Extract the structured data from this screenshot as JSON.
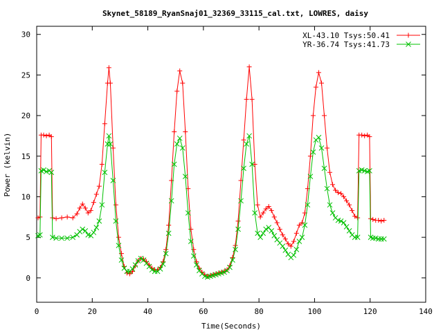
{
  "chart_data": {
    "type": "line",
    "title": "Skynet_58189_RyanSnaj01_32369_33115_cal.txt, LOWRES, daisy",
    "xlabel": "Time(Seconds)",
    "ylabel": "Power (kelvin)",
    "xlim": [
      0,
      140
    ],
    "ylim": [
      -3,
      31
    ],
    "xticks": [
      0,
      20,
      40,
      60,
      80,
      100,
      120,
      140
    ],
    "yticks": [
      0,
      5,
      10,
      15,
      20,
      25,
      30
    ],
    "grid": false,
    "legend_position": "top-right",
    "series": [
      {
        "name": "XL-43.10 Tsys:50.41",
        "color": "#ff0000",
        "marker": "plus",
        "points": [
          [
            0.5,
            7.4
          ],
          [
            1.2,
            7.5
          ],
          [
            1.6,
            17.6
          ],
          [
            2.5,
            17.6
          ],
          [
            3.5,
            17.5
          ],
          [
            4.5,
            17.6
          ],
          [
            5.3,
            17.4
          ],
          [
            5.7,
            7.4
          ],
          [
            7,
            7.3
          ],
          [
            9,
            7.4
          ],
          [
            11,
            7.5
          ],
          [
            13,
            7.4
          ],
          [
            14.5,
            7.9
          ],
          [
            15.5,
            8.6
          ],
          [
            16.5,
            9.1
          ],
          [
            17.5,
            8.6
          ],
          [
            18.5,
            8.0
          ],
          [
            19.5,
            8.3
          ],
          [
            20.5,
            9.3
          ],
          [
            21.5,
            10.3
          ],
          [
            22.5,
            11.3
          ],
          [
            23.5,
            14.0
          ],
          [
            24.5,
            19.0
          ],
          [
            25.5,
            24.0
          ],
          [
            26,
            25.9
          ],
          [
            26.5,
            24.0
          ],
          [
            27.5,
            16.0
          ],
          [
            28.5,
            9.0
          ],
          [
            29.5,
            5.0
          ],
          [
            30.5,
            3.0
          ],
          [
            31.5,
            1.4
          ],
          [
            32.5,
            0.6
          ],
          [
            33.5,
            0.5
          ],
          [
            34.5,
            0.8
          ],
          [
            35.5,
            1.5
          ],
          [
            36.5,
            2.1
          ],
          [
            37.5,
            2.4
          ],
          [
            38.5,
            2.3
          ],
          [
            39.5,
            2.0
          ],
          [
            40.5,
            1.6
          ],
          [
            41.5,
            1.2
          ],
          [
            42.5,
            1.0
          ],
          [
            43.5,
            1.0
          ],
          [
            44.5,
            1.3
          ],
          [
            45.5,
            2.0
          ],
          [
            46.5,
            3.5
          ],
          [
            47.5,
            6.5
          ],
          [
            48.5,
            12.0
          ],
          [
            49.5,
            18.0
          ],
          [
            50.5,
            23.0
          ],
          [
            51.5,
            25.5
          ],
          [
            52.5,
            24.0
          ],
          [
            53.5,
            18.0
          ],
          [
            54.5,
            11.0
          ],
          [
            55.5,
            6.0
          ],
          [
            56.5,
            3.5
          ],
          [
            57.5,
            2.0
          ],
          [
            58.5,
            1.2
          ],
          [
            59.5,
            0.7
          ],
          [
            60.5,
            0.4
          ],
          [
            61.5,
            0.2
          ],
          [
            62.5,
            0.3
          ],
          [
            63.5,
            0.4
          ],
          [
            64.5,
            0.5
          ],
          [
            65.5,
            0.6
          ],
          [
            66.5,
            0.7
          ],
          [
            67.5,
            0.8
          ],
          [
            68.5,
            1.0
          ],
          [
            69.5,
            1.5
          ],
          [
            70.5,
            2.5
          ],
          [
            71.5,
            4.0
          ],
          [
            72.5,
            7.0
          ],
          [
            73.5,
            12.0
          ],
          [
            74.5,
            17.0
          ],
          [
            75.5,
            22.0
          ],
          [
            76.5,
            26.0
          ],
          [
            77.5,
            22.0
          ],
          [
            78.5,
            14.0
          ],
          [
            79.5,
            9.0
          ],
          [
            80.5,
            7.5
          ],
          [
            81.5,
            8.0
          ],
          [
            82.5,
            8.5
          ],
          [
            83.5,
            8.8
          ],
          [
            84.5,
            8.3
          ],
          [
            85.5,
            7.5
          ],
          [
            86.5,
            6.8
          ],
          [
            87.5,
            6.0
          ],
          [
            88.5,
            5.3
          ],
          [
            89.5,
            4.8
          ],
          [
            90.5,
            4.2
          ],
          [
            91.5,
            3.9
          ],
          [
            92.5,
            4.5
          ],
          [
            93.5,
            5.5
          ],
          [
            94.5,
            6.5
          ],
          [
            95.5,
            6.8
          ],
          [
            96.5,
            8.0
          ],
          [
            97.5,
            11.0
          ],
          [
            98.5,
            15.0
          ],
          [
            99.5,
            20.0
          ],
          [
            100.5,
            23.5
          ],
          [
            101.5,
            25.3
          ],
          [
            102.5,
            24.0
          ],
          [
            103.5,
            20.0
          ],
          [
            104.5,
            16.0
          ],
          [
            105.5,
            13.0
          ],
          [
            106.5,
            11.5
          ],
          [
            107.5,
            10.8
          ],
          [
            108.5,
            10.5
          ],
          [
            109.5,
            10.4
          ],
          [
            110.5,
            10.0
          ],
          [
            111.5,
            9.5
          ],
          [
            112.5,
            9.0
          ],
          [
            113.5,
            8.3
          ],
          [
            114.5,
            7.6
          ],
          [
            115.5,
            7.4
          ],
          [
            116,
            17.6
          ],
          [
            117,
            17.6
          ],
          [
            118,
            17.5
          ],
          [
            119,
            17.6
          ],
          [
            119.8,
            17.4
          ],
          [
            120.2,
            7.3
          ],
          [
            121,
            7.2
          ],
          [
            122,
            7.1
          ],
          [
            123,
            7.1
          ],
          [
            124,
            7.0
          ],
          [
            125,
            7.1
          ]
        ]
      },
      {
        "name": "YR-36.74 Tsys:41.73",
        "color": "#00c000",
        "marker": "cross",
        "points": [
          [
            0.5,
            5.2
          ],
          [
            1.2,
            5.3
          ],
          [
            1.6,
            13.2
          ],
          [
            2.5,
            13.3
          ],
          [
            3.5,
            13.1
          ],
          [
            4.5,
            13.2
          ],
          [
            5.3,
            13.0
          ],
          [
            5.7,
            5.0
          ],
          [
            7,
            4.9
          ],
          [
            9,
            4.9
          ],
          [
            11,
            4.9
          ],
          [
            13,
            5.0
          ],
          [
            14.5,
            5.3
          ],
          [
            15.5,
            5.7
          ],
          [
            16.5,
            6.0
          ],
          [
            17.5,
            5.8
          ],
          [
            18.5,
            5.3
          ],
          [
            19.5,
            5.2
          ],
          [
            20.5,
            5.6
          ],
          [
            21.5,
            6.2
          ],
          [
            22.5,
            7.0
          ],
          [
            23.5,
            9.0
          ],
          [
            24.5,
            13.0
          ],
          [
            25.5,
            16.5
          ],
          [
            26,
            17.5
          ],
          [
            26.5,
            16.5
          ],
          [
            27.5,
            12.0
          ],
          [
            28.5,
            7.0
          ],
          [
            29.5,
            4.0
          ],
          [
            30.5,
            2.2
          ],
          [
            31.5,
            1.2
          ],
          [
            32.5,
            0.8
          ],
          [
            33.5,
            0.8
          ],
          [
            34.5,
            1.1
          ],
          [
            35.5,
            1.6
          ],
          [
            36.5,
            2.1
          ],
          [
            37.5,
            2.4
          ],
          [
            38.5,
            2.2
          ],
          [
            39.5,
            1.8
          ],
          [
            40.5,
            1.4
          ],
          [
            41.5,
            1.0
          ],
          [
            42.5,
            0.8
          ],
          [
            43.5,
            0.8
          ],
          [
            44.5,
            1.1
          ],
          [
            45.5,
            1.7
          ],
          [
            46.5,
            3.0
          ],
          [
            47.5,
            5.5
          ],
          [
            48.5,
            9.5
          ],
          [
            49.5,
            14.0
          ],
          [
            50.5,
            16.5
          ],
          [
            51.5,
            17.2
          ],
          [
            52.5,
            16.0
          ],
          [
            53.5,
            12.5
          ],
          [
            54.5,
            8.0
          ],
          [
            55.5,
            4.5
          ],
          [
            56.5,
            2.7
          ],
          [
            57.5,
            1.6
          ],
          [
            58.5,
            0.9
          ],
          [
            59.5,
            0.5
          ],
          [
            60.5,
            0.2
          ],
          [
            61.5,
            0.1
          ],
          [
            62.5,
            0.2
          ],
          [
            63.5,
            0.3
          ],
          [
            64.5,
            0.4
          ],
          [
            65.5,
            0.5
          ],
          [
            66.5,
            0.6
          ],
          [
            67.5,
            0.7
          ],
          [
            68.5,
            0.9
          ],
          [
            69.5,
            1.3
          ],
          [
            70.5,
            2.2
          ],
          [
            71.5,
            3.5
          ],
          [
            72.5,
            6.0
          ],
          [
            73.5,
            9.5
          ],
          [
            74.5,
            13.5
          ],
          [
            75.5,
            16.5
          ],
          [
            76.5,
            17.5
          ],
          [
            77.5,
            14.0
          ],
          [
            78.5,
            8.0
          ],
          [
            79.5,
            5.5
          ],
          [
            80.5,
            5.0
          ],
          [
            81.5,
            5.5
          ],
          [
            82.5,
            6.0
          ],
          [
            83.5,
            6.2
          ],
          [
            84.5,
            5.8
          ],
          [
            85.5,
            5.2
          ],
          [
            86.5,
            4.7
          ],
          [
            87.5,
            4.3
          ],
          [
            88.5,
            3.9
          ],
          [
            89.5,
            3.4
          ],
          [
            90.5,
            2.9
          ],
          [
            91.5,
            2.5
          ],
          [
            92.5,
            2.8
          ],
          [
            93.5,
            3.5
          ],
          [
            94.5,
            4.5
          ],
          [
            95.5,
            5.0
          ],
          [
            96.5,
            6.5
          ],
          [
            97.5,
            9.0
          ],
          [
            98.5,
            12.5
          ],
          [
            99.5,
            15.5
          ],
          [
            100.5,
            17.0
          ],
          [
            101.5,
            17.3
          ],
          [
            102.5,
            16.0
          ],
          [
            103.5,
            13.5
          ],
          [
            104.5,
            11.0
          ],
          [
            105.5,
            9.0
          ],
          [
            106.5,
            8.0
          ],
          [
            107.5,
            7.4
          ],
          [
            108.5,
            7.1
          ],
          [
            109.5,
            7.0
          ],
          [
            110.5,
            6.8
          ],
          [
            111.5,
            6.3
          ],
          [
            112.5,
            5.8
          ],
          [
            113.5,
            5.3
          ],
          [
            114.5,
            5.0
          ],
          [
            115.5,
            5.0
          ],
          [
            116,
            13.2
          ],
          [
            117,
            13.3
          ],
          [
            118,
            13.2
          ],
          [
            119,
            13.1
          ],
          [
            119.8,
            13.2
          ],
          [
            120.2,
            5.0
          ],
          [
            121,
            4.9
          ],
          [
            122,
            4.9
          ],
          [
            123,
            4.8
          ],
          [
            124,
            4.8
          ],
          [
            125,
            4.8
          ]
        ]
      }
    ]
  }
}
